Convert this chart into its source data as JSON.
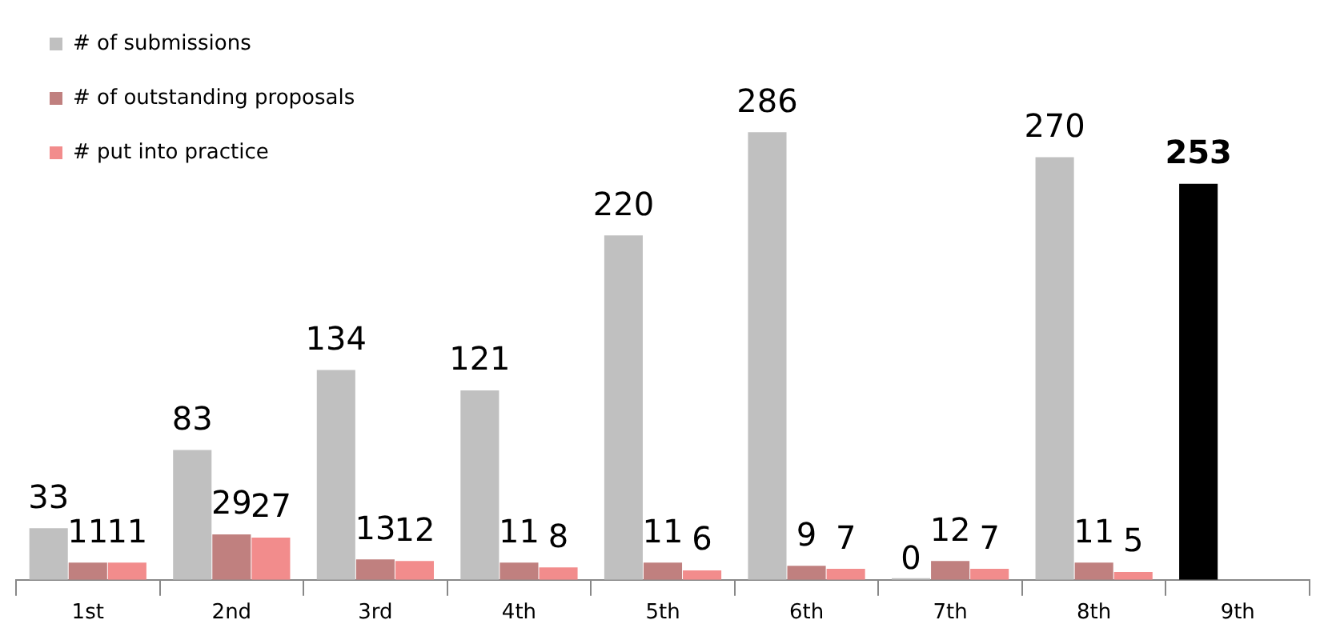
{
  "chart_data": {
    "type": "bar",
    "categories": [
      "1st",
      "2nd",
      "3rd",
      "4th",
      "5th",
      "6th",
      "7th",
      "8th",
      "9th"
    ],
    "series": [
      {
        "name": "# of submissions",
        "color": "#c0c0c0",
        "colors": [
          "#c0c0c0",
          "#c0c0c0",
          "#c0c0c0",
          "#c0c0c0",
          "#c0c0c0",
          "#c0c0c0",
          "#c0c0c0",
          "#c0c0c0",
          "#000000"
        ],
        "values": [
          33,
          83,
          134,
          121,
          220,
          286,
          0,
          270,
          253
        ]
      },
      {
        "name": "# of outstanding proposals",
        "color": "#c0807f",
        "values": [
          11,
          29,
          13,
          11,
          11,
          9,
          12,
          11,
          null
        ]
      },
      {
        "name": "# put into practice",
        "color": "#f28c8c",
        "values": [
          11,
          27,
          12,
          8,
          6,
          7,
          7,
          5,
          null
        ]
      }
    ],
    "data_labels": true,
    "legend": "top left",
    "grid": false
  }
}
